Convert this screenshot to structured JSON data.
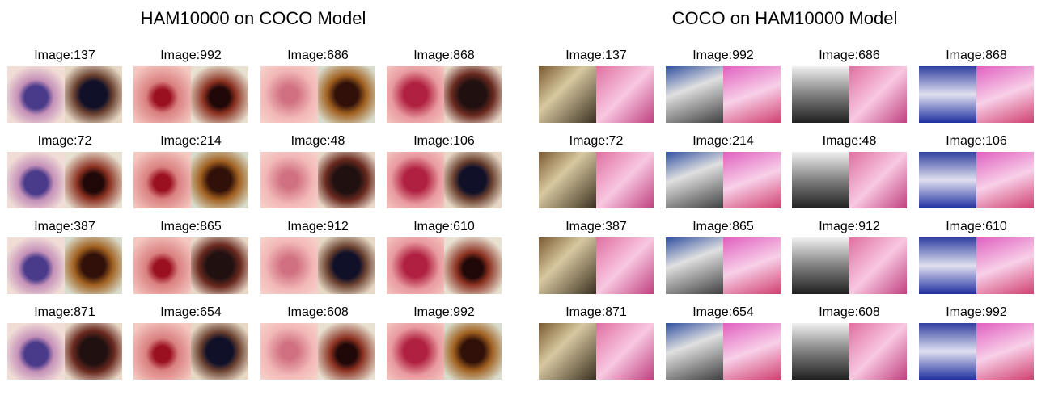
{
  "panels": [
    {
      "title": "HAM10000 on COCO Model",
      "labels": [
        "Image:137",
        "Image:992",
        "Image:686",
        "Image:868",
        "Image:72",
        "Image:214",
        "Image:48",
        "Image:106",
        "Image:387",
        "Image:865",
        "Image:912",
        "Image:610",
        "Image:871",
        "Image:654",
        "Image:608",
        "Image:992"
      ]
    },
    {
      "title": "COCO on HAM10000 Model",
      "labels": [
        "Image:137",
        "Image:992",
        "Image:686",
        "Image:868",
        "Image:72",
        "Image:214",
        "Image:48",
        "Image:106",
        "Image:387",
        "Image:865",
        "Image:912",
        "Image:610",
        "Image:871",
        "Image:654",
        "Image:608",
        "Image:992"
      ]
    }
  ],
  "colors": {
    "skin_light": "#f0c4c4",
    "skin_pink": "#e88aa0",
    "lesion_dark": "#5a1020",
    "coco_pink": "#e86aa0"
  }
}
